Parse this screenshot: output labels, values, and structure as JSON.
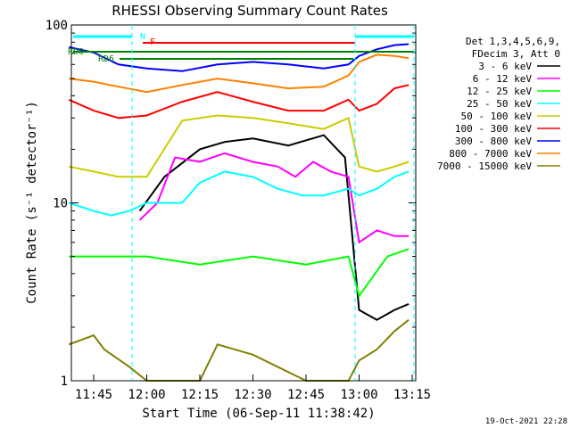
{
  "chart_data": {
    "type": "line",
    "title": "RHESSI Observing Summary Count Rates",
    "xlabel": "Start Time (06-Sep-11 11:38:42)",
    "ylabel": "Count Rate (s⁻¹ detector⁻¹)",
    "xlim": [
      "11:38:42",
      "13:16:00"
    ],
    "ylim": [
      1,
      100
    ],
    "yscale": "log",
    "x_ticks": [
      "11:45",
      "12:00",
      "12:15",
      "12:30",
      "12:45",
      "13:00",
      "13:15"
    ],
    "y_ticks": [
      "1",
      "10",
      "100"
    ],
    "legend_header": [
      "Det 1,3,4,5,6,9,",
      "FDecim 3, Att 0"
    ],
    "legend_position": "right",
    "date_stamp": "19-Oct-2021 22:28",
    "flag_labels": [
      "N",
      "F",
      "RD0",
      "RD6"
    ],
    "series": [
      {
        "name": "3 - 6 keV",
        "color": "#000000",
        "x": [
          "11:58",
          "12:05",
          "12:15",
          "12:22",
          "12:30",
          "12:40",
          "12:50",
          "12:56",
          "13:00",
          "13:05",
          "13:10",
          "13:14"
        ],
        "y": [
          9,
          14,
          20,
          22,
          23,
          21,
          24,
          18,
          2.5,
          2.2,
          2.5,
          2.7
        ]
      },
      {
        "name": "6 - 12 keV",
        "color": "#ff00ff",
        "x": [
          "11:58",
          "12:03",
          "12:08",
          "12:15",
          "12:22",
          "12:30",
          "12:37",
          "12:42",
          "12:47",
          "12:52",
          "12:57",
          "13:00",
          "13:05",
          "13:10",
          "13:14"
        ],
        "y": [
          8,
          10,
          18,
          17,
          19,
          17,
          16,
          14,
          17,
          15,
          14,
          6,
          7,
          6.5,
          6.5
        ]
      },
      {
        "name": "12 - 25 keV",
        "color": "#00ff00",
        "x": [
          "11:38",
          "11:50",
          "12:00",
          "12:15",
          "12:30",
          "12:45",
          "12:57",
          "13:00",
          "13:08",
          "13:14"
        ],
        "y": [
          5,
          5,
          5,
          4.5,
          5,
          4.5,
          5,
          3,
          5,
          5.5
        ]
      },
      {
        "name": "25 - 50 keV",
        "color": "#00ffff",
        "x": [
          "11:38",
          "11:45",
          "11:50",
          "11:55",
          "12:00",
          "12:10",
          "12:15",
          "12:22",
          "12:30",
          "12:37",
          "12:44",
          "12:50",
          "12:57",
          "13:00",
          "13:05",
          "13:10",
          "13:14"
        ],
        "y": [
          10,
          9,
          8.5,
          9,
          10,
          10,
          13,
          15,
          14,
          12,
          11,
          11,
          12,
          11,
          12,
          14,
          15
        ]
      },
      {
        "name": "50 - 100 keV",
        "color": "#cccc00",
        "x": [
          "11:38",
          "11:45",
          "11:52",
          "12:00",
          "12:10",
          "12:20",
          "12:30",
          "12:40",
          "12:50",
          "12:57",
          "13:00",
          "13:05",
          "13:10",
          "13:14"
        ],
        "y": [
          16,
          15,
          14,
          14,
          29,
          31,
          30,
          28,
          26,
          30,
          16,
          15,
          16,
          17
        ]
      },
      {
        "name": "100 - 300 keV",
        "color": "#ff0000",
        "x": [
          "11:38",
          "11:45",
          "11:52",
          "12:00",
          "12:10",
          "12:20",
          "12:30",
          "12:40",
          "12:50",
          "12:57",
          "13:00",
          "13:05",
          "13:10",
          "13:14"
        ],
        "y": [
          38,
          33,
          30,
          31,
          37,
          42,
          37,
          33,
          33,
          38,
          33,
          36,
          44,
          46
        ]
      },
      {
        "name": "300 - 800 keV",
        "color": "#0000ff",
        "x": [
          "11:38",
          "11:45",
          "11:52",
          "12:00",
          "12:10",
          "12:20",
          "12:30",
          "12:40",
          "12:50",
          "12:57",
          "13:00",
          "13:05",
          "13:10",
          "13:14"
        ],
        "y": [
          75,
          70,
          60,
          57,
          55,
          60,
          62,
          60,
          57,
          60,
          67,
          73,
          77,
          78
        ]
      },
      {
        "name": "800 - 7000 keV",
        "color": "#ff8000",
        "x": [
          "11:38",
          "11:45",
          "11:52",
          "12:00",
          "12:10",
          "12:20",
          "12:30",
          "12:40",
          "12:50",
          "12:57",
          "13:00",
          "13:05",
          "13:10",
          "13:14"
        ],
        "y": [
          50,
          48,
          45,
          42,
          46,
          50,
          47,
          44,
          45,
          52,
          62,
          68,
          67,
          65
        ]
      },
      {
        "name": "7000 - 15000 keV",
        "color": "#808000",
        "x": [
          "11:38",
          "11:45",
          "11:48",
          "11:55",
          "12:00",
          "12:15",
          "12:20",
          "12:30",
          "12:45",
          "12:57",
          "13:00",
          "13:05",
          "13:10",
          "13:14"
        ],
        "y": [
          1.6,
          1.8,
          1.5,
          1.2,
          1,
          1,
          1.6,
          1.4,
          1,
          1,
          1.3,
          1.5,
          1.9,
          2.2
        ]
      }
    ]
  }
}
